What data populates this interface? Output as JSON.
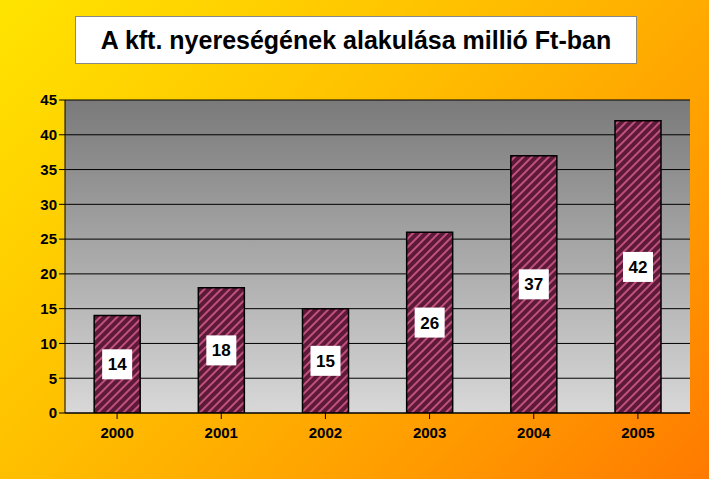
{
  "chart_data": {
    "type": "bar",
    "title": "A kft. nyereségének alakulása millió Ft-ban",
    "categories": [
      "2000",
      "2001",
      "2002",
      "2003",
      "2004",
      "2005"
    ],
    "values": [
      14,
      18,
      15,
      26,
      37,
      42
    ],
    "color": "#5c1a38",
    "ylim": [
      0,
      45
    ],
    "yticks": [
      0,
      5,
      10,
      15,
      20,
      25,
      30,
      35,
      40,
      45
    ],
    "grid": true,
    "data_labels": true
  }
}
